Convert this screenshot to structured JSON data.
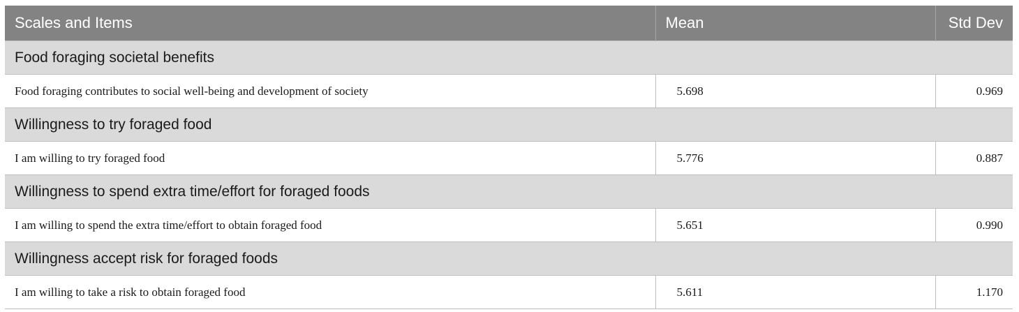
{
  "header": {
    "col1": "Scales and Items",
    "col2": "Mean",
    "col3": "Std Dev"
  },
  "groups": [
    {
      "scale": "Food foraging societal benefits",
      "item": "Food foraging contributes to social well-being and development of society",
      "mean": "5.698",
      "sd": "0.969"
    },
    {
      "scale": "Willingness to try foraged food",
      "item": "I am willing to try foraged food",
      "mean": "5.776",
      "sd": "0.887"
    },
    {
      "scale": "Willingness to spend extra time/effort for foraged foods",
      "item": "I am willing to spend the extra time/effort to obtain foraged food",
      "mean": "5.651",
      "sd": "0.990"
    },
    {
      "scale": "Willingness accept risk for foraged foods",
      "item": "I am willing to take a risk to obtain foraged food",
      "mean": "5.611",
      "sd": "1.170"
    }
  ]
}
